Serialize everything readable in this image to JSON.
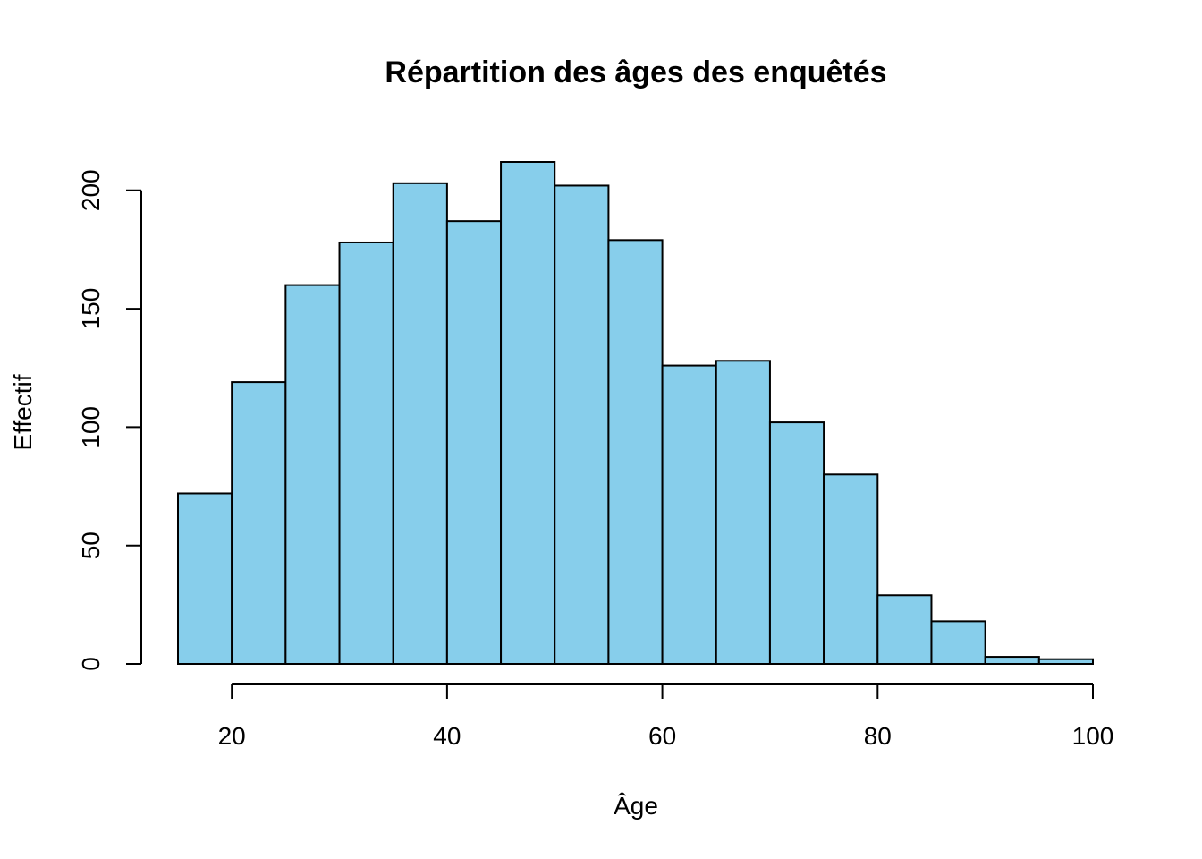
{
  "chart_data": {
    "type": "bar",
    "title": "Répartition des âges des enquêtés",
    "xlabel": "Âge",
    "ylabel": "Effectif",
    "bin_edges": [
      15,
      20,
      25,
      30,
      35,
      40,
      45,
      50,
      55,
      60,
      65,
      70,
      75,
      80,
      85,
      90,
      95,
      100
    ],
    "values": [
      72,
      119,
      160,
      178,
      203,
      187,
      212,
      202,
      179,
      126,
      128,
      102,
      80,
      29,
      18,
      3,
      2
    ],
    "xlim": [
      15,
      100
    ],
    "ylim": [
      0,
      212
    ],
    "x_ticks": [
      20,
      40,
      60,
      80,
      100
    ],
    "y_ticks": [
      0,
      50,
      100,
      150,
      200
    ],
    "bar_color": "#87CEEB",
    "grid": false,
    "legend": "none"
  }
}
